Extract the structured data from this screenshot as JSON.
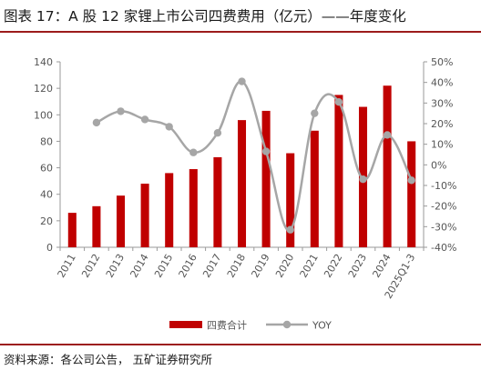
{
  "header": {
    "title": "图表 17：A 股 12 家锂上市公司四费费用（亿元）——年度变化"
  },
  "footer": {
    "source": "资料来源：各公司公告， 五矿证券研究所"
  },
  "chart_data": {
    "type": "bar",
    "categories": [
      "2011",
      "2012",
      "2013",
      "2014",
      "2015",
      "2016",
      "2017",
      "2018",
      "2019",
      "2020",
      "2021",
      "2022",
      "2023",
      "2024",
      "2025Q1-3"
    ],
    "series": [
      {
        "name": "四费合计",
        "type": "bar",
        "axis": "left",
        "color": "#c00000",
        "values": [
          26,
          31,
          39,
          48,
          56,
          59,
          68,
          96,
          103,
          71,
          88,
          115,
          106,
          122,
          80
        ]
      },
      {
        "name": "YOY",
        "type": "line",
        "axis": "right",
        "color": "#a6a6a6",
        "smooth": true,
        "values": [
          null,
          20.5,
          26,
          22,
          18.5,
          6,
          15.5,
          40.5,
          6.5,
          -31.5,
          25,
          30.5,
          -7,
          14.5,
          -7.5
        ]
      }
    ],
    "y_left": {
      "min": 0,
      "max": 140,
      "step": 20,
      "ticks": [
        "0",
        "20",
        "40",
        "60",
        "80",
        "100",
        "120",
        "140"
      ]
    },
    "y_right": {
      "min": -40,
      "max": 50,
      "step": 10,
      "ticks": [
        "-40%",
        "-30%",
        "-20%",
        "-10%",
        "0%",
        "10%",
        "20%",
        "30%",
        "40%",
        "50%"
      ]
    },
    "grid": false,
    "legend": {
      "position": "bottom",
      "entries": [
        "四费合计",
        "YOY"
      ]
    }
  }
}
